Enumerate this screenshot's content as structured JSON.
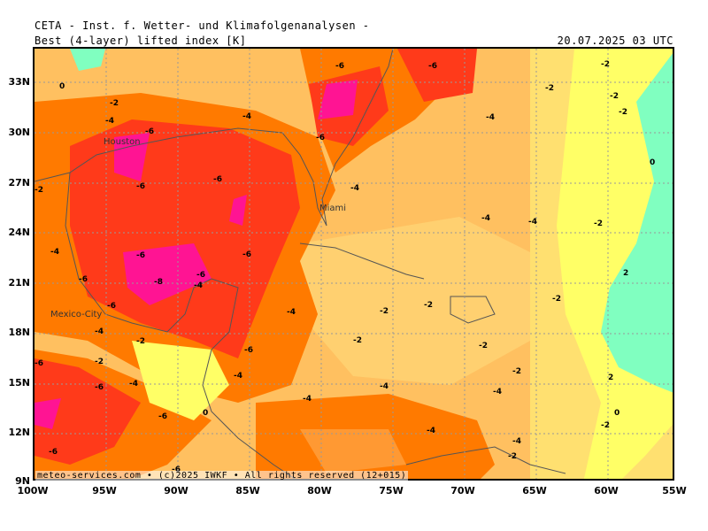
{
  "header": {
    "title": "CETA - Inst. f. Wetter- und Klimafolgenanalysen -",
    "product": "Best (4-layer) lifted index [K]",
    "valid_time": "20.07.2025 03 UTC"
  },
  "footer": {
    "credit": "meteo-services.com • (c)2025 IWKF • All rights reserved (12+015)"
  },
  "axes": {
    "latitude_labels": [
      "33N",
      "30N",
      "27N",
      "24N",
      "21N",
      "18N",
      "15N",
      "12N",
      "9N"
    ],
    "longitude_labels": [
      "100W",
      "95W",
      "90W",
      "85W",
      "80W",
      "75W",
      "70W",
      "65W",
      "60W",
      "55W"
    ]
  },
  "cities": [
    {
      "name": "Houston"
    },
    {
      "name": "Miami"
    },
    {
      "name": "Mexico-City"
    }
  ],
  "contour_labels": [
    "0",
    "-2",
    "-4",
    "-6",
    "-8",
    "2"
  ],
  "colors": {
    "lifted_index_-8": "#ff1493",
    "lifted_index_-6": "#ff3a1a",
    "lifted_index_-4": "#ff7a00",
    "lifted_index_-3": "#ff9933",
    "lifted_index_-2": "#ffc060",
    "lifted_index_-1": "#ffe070",
    "lifted_index_0": "#ffff66",
    "lifted_index_2": "#80ffc0",
    "grid": "#999999",
    "coastline": "#555555"
  }
}
